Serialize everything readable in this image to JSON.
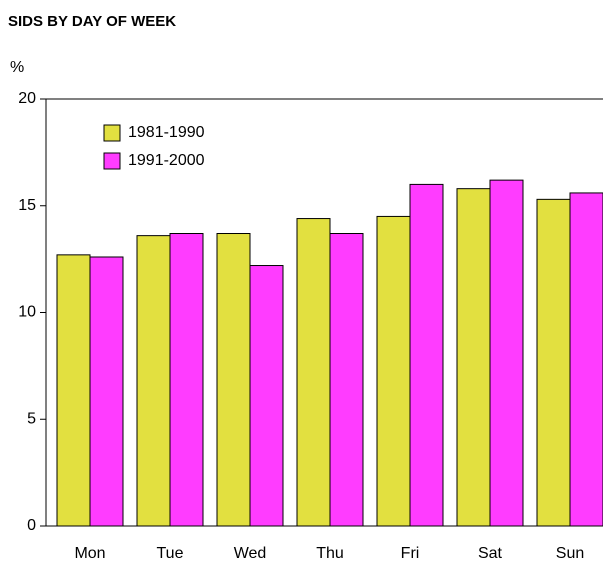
{
  "chart_data": {
    "type": "bar",
    "title": "SIDS BY DAY OF WEEK",
    "y_label": "%",
    "categories": [
      "Mon",
      "Tue",
      "Wed",
      "Thu",
      "Fri",
      "Sat",
      "Sun"
    ],
    "series": [
      {
        "name": "1981-1990",
        "color": "#e2e040",
        "values": [
          12.7,
          13.6,
          13.7,
          14.4,
          14.5,
          15.8,
          15.3
        ]
      },
      {
        "name": "1991-2000",
        "color": "#ff3cff",
        "values": [
          12.6,
          13.7,
          12.2,
          13.7,
          16.0,
          16.2,
          15.6
        ]
      }
    ],
    "ylim": [
      0,
      20
    ],
    "yticks": [
      0,
      5,
      10,
      15,
      20
    ],
    "legend": "upper left"
  }
}
